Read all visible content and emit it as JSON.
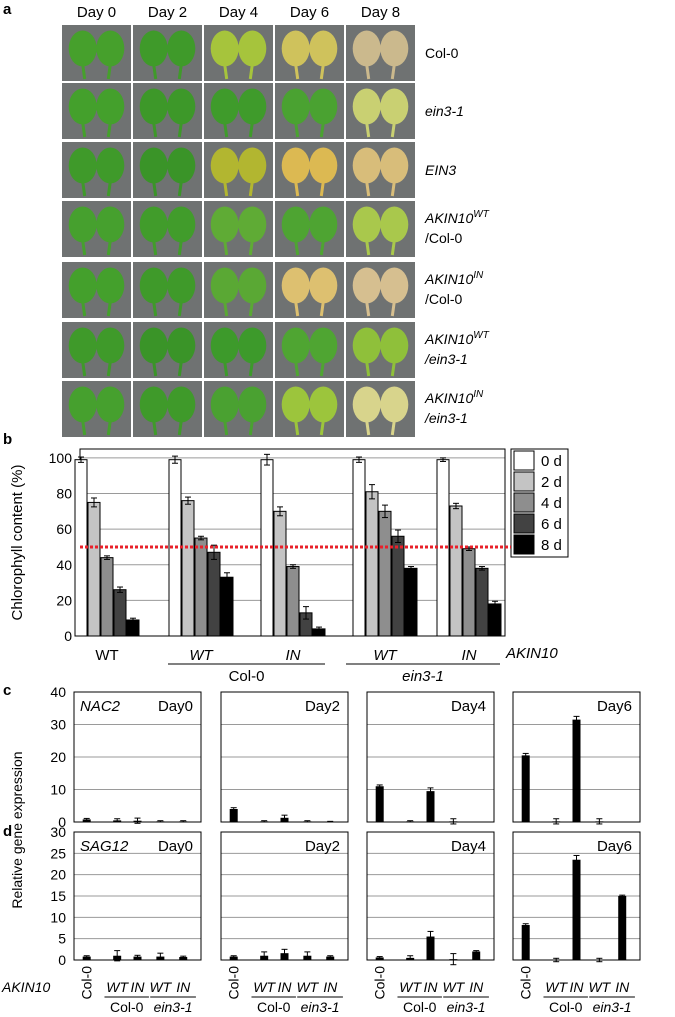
{
  "panel_labels": [
    "a",
    "b",
    "c",
    "d"
  ],
  "photos": {
    "columns": [
      "Day 0",
      "Day 2",
      "Day 4",
      "Day 6",
      "Day 8"
    ],
    "rows": [
      {
        "label": "Col-0"
      },
      {
        "label": "ein3-1",
        "italic": true
      },
      {
        "label": "EIN3",
        "italic": true
      },
      {
        "label": "AKIN10",
        "italic": true,
        "sup": "WT",
        "line2": "/Col-0"
      },
      {
        "label": "AKIN10",
        "italic": true,
        "sup": "IN",
        "line2": "/Col-0"
      },
      {
        "label": "AKIN10",
        "italic": true,
        "sup": "WT",
        "line2": "/ein3-1",
        "line2_italic": true
      },
      {
        "label": "AKIN10",
        "italic": true,
        "sup": "IN",
        "line2": "/ein3-1",
        "line2_italic": true
      }
    ]
  },
  "expression_y_label": "Relative gene expression",
  "expression_axis_label": "AKIN10",
  "chart_data": [
    {
      "type": "grouped_bar",
      "y_label": "Chlorophyll content (%)",
      "categories": [
        "WT",
        "WT",
        "IN",
        "WT",
        "IN"
      ],
      "group_labels": [
        "Col-0",
        "ein3-1"
      ],
      "axis_label": "AKIN10",
      "ylim": [
        0,
        105
      ],
      "yticks": [
        0,
        20,
        40,
        60,
        80,
        100
      ],
      "grid": true,
      "threshold": 50,
      "threshold_color": "#e8202a",
      "series": [
        {
          "name": "0 d",
          "color": "#ffffff",
          "values": [
            99,
            99,
            99,
            99,
            99
          ],
          "errors": [
            1.5,
            2,
            3,
            1.5,
            1
          ]
        },
        {
          "name": "2 d",
          "color": "#c4c4c4",
          "values": [
            75,
            76,
            70,
            81,
            73
          ],
          "errors": [
            2.5,
            2,
            2.5,
            4,
            1.5
          ]
        },
        {
          "name": "4 d",
          "color": "#8e8e8e",
          "values": [
            44,
            55,
            39,
            70,
            49
          ],
          "errors": [
            1,
            1,
            1,
            3.5,
            1
          ]
        },
        {
          "name": "6 d",
          "color": "#424242",
          "values": [
            26,
            47,
            13,
            56,
            38
          ],
          "errors": [
            1.5,
            4,
            3.5,
            3.5,
            1
          ]
        },
        {
          "name": "8 d",
          "color": "#000000",
          "values": [
            9,
            33,
            4,
            38,
            18
          ],
          "errors": [
            1,
            2.5,
            1,
            1,
            1.5
          ]
        }
      ]
    },
    {
      "type": "bar",
      "gene": "NAC2",
      "day": "Day0",
      "color": "#000000",
      "ylim": [
        0,
        40
      ],
      "yticks": [
        0,
        10,
        20,
        30,
        40
      ],
      "grid": true,
      "values": [
        0.8,
        0.5,
        0.4,
        0.2,
        0.2
      ],
      "errors": [
        0.3,
        0.5,
        0.8,
        0.2,
        0.2
      ]
    },
    {
      "type": "bar",
      "day": "Day2",
      "color": "#000000",
      "ylim": [
        0,
        40
      ],
      "yticks": [
        0,
        10,
        20,
        30,
        40
      ],
      "grid": true,
      "values": [
        4,
        0.2,
        1.3,
        0.2,
        0.1
      ],
      "errors": [
        0.4,
        0.2,
        0.8,
        0.2,
        0.1
      ]
    },
    {
      "type": "bar",
      "day": "Day4",
      "color": "#000000",
      "ylim": [
        0,
        40
      ],
      "yticks": [
        0,
        10,
        20,
        30,
        40
      ],
      "grid": true,
      "values": [
        11,
        0.2,
        9.5,
        0.2,
        0
      ],
      "errors": [
        0.4,
        0.2,
        1,
        0.8,
        0
      ]
    },
    {
      "type": "bar",
      "day": "Day6",
      "color": "#000000",
      "ylim": [
        0,
        40
      ],
      "yticks": [
        0,
        10,
        20,
        30,
        40
      ],
      "grid": true,
      "values": [
        20.5,
        0.2,
        31.5,
        0.2,
        0
      ],
      "errors": [
        0.6,
        0.8,
        1,
        0.8,
        0
      ]
    },
    {
      "type": "bar",
      "gene": "SAG12",
      "day": "Day0",
      "color": "#000000",
      "ylim": [
        0,
        30
      ],
      "yticks": [
        0,
        5,
        10,
        15,
        20,
        25,
        30
      ],
      "grid": true,
      "categories": [
        "Col-0",
        "WT",
        "IN",
        "WT",
        "IN"
      ],
      "group_labels": [
        "Col-0",
        "ein3-1"
      ],
      "values": [
        0.8,
        1,
        0.8,
        0.8,
        0.7
      ],
      "errors": [
        0.2,
        1.2,
        0.3,
        0.8,
        0.2
      ]
    },
    {
      "type": "bar",
      "day": "Day2",
      "color": "#000000",
      "ylim": [
        0,
        30
      ],
      "yticks": [
        0,
        5,
        10,
        15,
        20,
        25,
        30
      ],
      "grid": true,
      "categories": [
        "Col-0",
        "WT",
        "IN",
        "WT",
        "IN"
      ],
      "group_labels": [
        "Col-0",
        "ein3-1"
      ],
      "values": [
        0.8,
        1,
        1.6,
        1,
        0.8
      ],
      "errors": [
        0.2,
        0.9,
        0.9,
        0.9,
        0.2
      ]
    },
    {
      "type": "bar",
      "day": "Day4",
      "color": "#000000",
      "ylim": [
        0,
        30
      ],
      "yticks": [
        0,
        5,
        10,
        15,
        20,
        25,
        30
      ],
      "grid": true,
      "categories": [
        "Col-0",
        "WT",
        "IN",
        "WT",
        "IN"
      ],
      "group_labels": [
        "Col-0",
        "ein3-1"
      ],
      "values": [
        0.6,
        0.5,
        5.5,
        0.2,
        2
      ],
      "errors": [
        0.2,
        0.5,
        1.2,
        1.3,
        0.2
      ]
    },
    {
      "type": "bar",
      "day": "Day6",
      "color": "#000000",
      "ylim": [
        0,
        30
      ],
      "yticks": [
        0,
        5,
        10,
        15,
        20,
        25,
        30
      ],
      "grid": true,
      "categories": [
        "Col-0",
        "WT",
        "IN",
        "WT",
        "IN"
      ],
      "group_labels": [
        "Col-0",
        "ein3-1"
      ],
      "values": [
        8.2,
        0,
        23.5,
        0,
        15
      ],
      "errors": [
        0.3,
        0.4,
        1,
        0.4,
        0.2
      ]
    }
  ]
}
